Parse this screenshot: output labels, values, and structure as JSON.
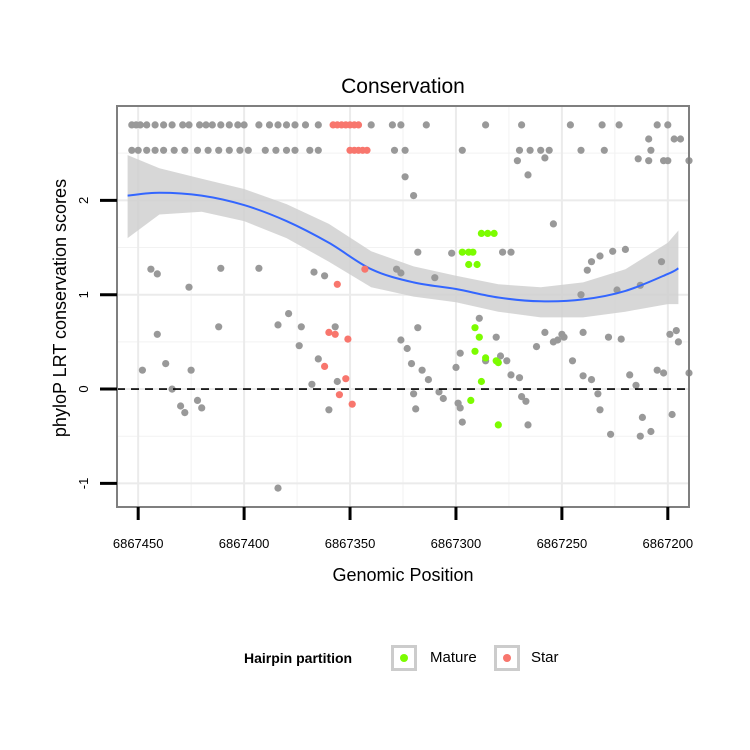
{
  "chart_data": {
    "type": "scatter",
    "title": "Conservation",
    "xlabel": "Genomic Position",
    "ylabel": "phyloP LRT conservation scores",
    "x_reversed": true,
    "xlim": [
      6867460,
      6867190
    ],
    "ylim": [
      -1.25,
      3.0
    ],
    "x_ticks": [
      6867450,
      6867400,
      6867350,
      6867300,
      6867250,
      6867200
    ],
    "x_tick_labels": [
      "6867450",
      "6867400",
      "6867350",
      "6867300",
      "6867250",
      "6867200"
    ],
    "y_ticks": [
      -1,
      0,
      1,
      2
    ],
    "y_tick_labels": [
      "-1",
      "0",
      "1",
      "2"
    ],
    "reference_line": {
      "y": 0,
      "style": "dashed",
      "color": "#000000"
    },
    "grid": true,
    "legend_title": "Hairpin partition",
    "legend_position": "bottom",
    "colors": {
      "Other": "#999999",
      "Mature": "#7cfc00",
      "Star": "#f8766d",
      "smooth": "#3366ff",
      "band": "#d0d0d0"
    },
    "series": [
      {
        "name": "Mature",
        "color": "#7cfc00",
        "points": [
          [
            6867288,
            1.65
          ],
          [
            6867285,
            1.65
          ],
          [
            6867282,
            1.65
          ],
          [
            6867297,
            1.45
          ],
          [
            6867294,
            1.45
          ],
          [
            6867292,
            1.45
          ],
          [
            6867294,
            1.32
          ],
          [
            6867290,
            1.32
          ],
          [
            6867291,
            0.65
          ],
          [
            6867289,
            0.55
          ],
          [
            6867291,
            0.4
          ],
          [
            6867286,
            0.33
          ],
          [
            6867281,
            0.3
          ],
          [
            6867280,
            0.28
          ],
          [
            6867288,
            0.08
          ],
          [
            6867293,
            -0.12
          ],
          [
            6867280,
            -0.38
          ]
        ]
      },
      {
        "name": "Star",
        "color": "#f8766d",
        "points": [
          [
            6867358,
            2.8
          ],
          [
            6867356,
            2.8
          ],
          [
            6867354,
            2.8
          ],
          [
            6867352,
            2.8
          ],
          [
            6867350,
            2.8
          ],
          [
            6867348,
            2.8
          ],
          [
            6867346,
            2.8
          ],
          [
            6867350,
            2.53
          ],
          [
            6867348,
            2.53
          ],
          [
            6867346,
            2.53
          ],
          [
            6867344,
            2.53
          ],
          [
            6867342,
            2.53
          ],
          [
            6867343,
            1.27
          ],
          [
            6867356,
            1.11
          ],
          [
            6867360,
            0.6
          ],
          [
            6867357,
            0.58
          ],
          [
            6867351,
            0.53
          ],
          [
            6867362,
            0.24
          ],
          [
            6867352,
            0.11
          ],
          [
            6867355,
            -0.06
          ],
          [
            6867349,
            -0.16
          ]
        ]
      }
    ],
    "other_points": [
      [
        6867453,
        2.8
      ],
      [
        6867451,
        2.8
      ],
      [
        6867449,
        2.8
      ],
      [
        6867446,
        2.8
      ],
      [
        6867442,
        2.8
      ],
      [
        6867438,
        2.8
      ],
      [
        6867434,
        2.8
      ],
      [
        6867429,
        2.8
      ],
      [
        6867426,
        2.8
      ],
      [
        6867421,
        2.8
      ],
      [
        6867418,
        2.8
      ],
      [
        6867415,
        2.8
      ],
      [
        6867411,
        2.8
      ],
      [
        6867407,
        2.8
      ],
      [
        6867403,
        2.8
      ],
      [
        6867400,
        2.8
      ],
      [
        6867393,
        2.8
      ],
      [
        6867388,
        2.8
      ],
      [
        6867384,
        2.8
      ],
      [
        6867380,
        2.8
      ],
      [
        6867376,
        2.8
      ],
      [
        6867371,
        2.8
      ],
      [
        6867365,
        2.8
      ],
      [
        6867340,
        2.8
      ],
      [
        6867330,
        2.8
      ],
      [
        6867326,
        2.8
      ],
      [
        6867314,
        2.8
      ],
      [
        6867286,
        2.8
      ],
      [
        6867269,
        2.8
      ],
      [
        6867246,
        2.8
      ],
      [
        6867231,
        2.8
      ],
      [
        6867223,
        2.8
      ],
      [
        6867205,
        2.8
      ],
      [
        6867200,
        2.8
      ],
      [
        6867453,
        2.53
      ],
      [
        6867450,
        2.53
      ],
      [
        6867446,
        2.53
      ],
      [
        6867442,
        2.53
      ],
      [
        6867438,
        2.53
      ],
      [
        6867433,
        2.53
      ],
      [
        6867428,
        2.53
      ],
      [
        6867422,
        2.53
      ],
      [
        6867417,
        2.53
      ],
      [
        6867412,
        2.53
      ],
      [
        6867407,
        2.53
      ],
      [
        6867402,
        2.53
      ],
      [
        6867398,
        2.53
      ],
      [
        6867390,
        2.53
      ],
      [
        6867385,
        2.53
      ],
      [
        6867380,
        2.53
      ],
      [
        6867376,
        2.53
      ],
      [
        6867369,
        2.53
      ],
      [
        6867365,
        2.53
      ],
      [
        6867329,
        2.53
      ],
      [
        6867324,
        2.53
      ],
      [
        6867297,
        2.53
      ],
      [
        6867270,
        2.53
      ],
      [
        6867265,
        2.53
      ],
      [
        6867260,
        2.53
      ],
      [
        6867256,
        2.53
      ],
      [
        6867241,
        2.53
      ],
      [
        6867230,
        2.53
      ],
      [
        6867208,
        2.53
      ],
      [
        6867271,
        2.42
      ],
      [
        6867209,
        2.42
      ],
      [
        6867202,
        2.42
      ],
      [
        6867200,
        2.42
      ],
      [
        6867190,
        2.42
      ],
      [
        6867258,
        2.45
      ],
      [
        6867266,
        2.27
      ],
      [
        6867209,
        2.65
      ],
      [
        6867214,
        2.44
      ],
      [
        6867197,
        2.65
      ],
      [
        6867194,
        2.65
      ],
      [
        6867324,
        2.25
      ],
      [
        6867320,
        2.05
      ],
      [
        6867444,
        1.27
      ],
      [
        6867441,
        1.22
      ],
      [
        6867426,
        1.08
      ],
      [
        6867411,
        1.28
      ],
      [
        6867393,
        1.28
      ],
      [
        6867367,
        1.24
      ],
      [
        6867362,
        1.2
      ],
      [
        6867328,
        1.27
      ],
      [
        6867326,
        1.23
      ],
      [
        6867310,
        1.18
      ],
      [
        6867318,
        1.45
      ],
      [
        6867302,
        1.44
      ],
      [
        6867278,
        1.45
      ],
      [
        6867274,
        1.45
      ],
      [
        6867232,
        1.41
      ],
      [
        6867236,
        1.35
      ],
      [
        6867238,
        1.26
      ],
      [
        6867226,
        1.46
      ],
      [
        6867220,
        1.48
      ],
      [
        6867254,
        1.75
      ],
      [
        6867241,
        1.0
      ],
      [
        6867448,
        0.2
      ],
      [
        6867441,
        0.58
      ],
      [
        6867437,
        0.27
      ],
      [
        6867434,
        0.0
      ],
      [
        6867430,
        -0.18
      ],
      [
        6867428,
        -0.25
      ],
      [
        6867425,
        0.2
      ],
      [
        6867422,
        -0.12
      ],
      [
        6867420,
        -0.2
      ],
      [
        6867412,
        0.66
      ],
      [
        6867384,
        0.68
      ],
      [
        6867379,
        0.8
      ],
      [
        6867373,
        0.66
      ],
      [
        6867374,
        0.46
      ],
      [
        6867365,
        0.32
      ],
      [
        6867368,
        0.05
      ],
      [
        6867357,
        0.66
      ],
      [
        6867356,
        0.08
      ],
      [
        6867360,
        -0.22
      ],
      [
        6867384,
        -1.05
      ],
      [
        6867326,
        0.52
      ],
      [
        6867323,
        0.43
      ],
      [
        6867321,
        0.27
      ],
      [
        6867320,
        -0.05
      ],
      [
        6867319,
        -0.21
      ],
      [
        6867318,
        0.65
      ],
      [
        6867316,
        0.2
      ],
      [
        6867313,
        0.1
      ],
      [
        6867308,
        -0.03
      ],
      [
        6867306,
        -0.1
      ],
      [
        6867300,
        0.23
      ],
      [
        6867298,
        0.38
      ],
      [
        6867297,
        -0.35
      ],
      [
        6867299,
        -0.15
      ],
      [
        6867298,
        -0.2
      ],
      [
        6867289,
        0.75
      ],
      [
        6867286,
        0.3
      ],
      [
        6867281,
        0.55
      ],
      [
        6867279,
        0.35
      ],
      [
        6867276,
        0.3
      ],
      [
        6867274,
        0.15
      ],
      [
        6867270,
        0.12
      ],
      [
        6867269,
        -0.08
      ],
      [
        6867267,
        -0.13
      ],
      [
        6867266,
        -0.38
      ],
      [
        6867262,
        0.45
      ],
      [
        6867258,
        0.6
      ],
      [
        6867254,
        0.5
      ],
      [
        6867252,
        0.52
      ],
      [
        6867250,
        0.58
      ],
      [
        6867249,
        0.55
      ],
      [
        6867240,
        0.14
      ],
      [
        6867236,
        0.1
      ],
      [
        6867233,
        -0.05
      ],
      [
        6867232,
        -0.22
      ],
      [
        6867227,
        -0.48
      ],
      [
        6867245,
        0.3
      ],
      [
        6867240,
        0.6
      ],
      [
        6867228,
        0.55
      ],
      [
        6867222,
        0.53
      ],
      [
        6867218,
        0.15
      ],
      [
        6867215,
        0.04
      ],
      [
        6867213,
        -0.5
      ],
      [
        6867212,
        -0.3
      ],
      [
        6867208,
        -0.45
      ],
      [
        6867205,
        0.2
      ],
      [
        6867202,
        0.17
      ],
      [
        6867196,
        0.62
      ],
      [
        6867199,
        0.58
      ],
      [
        6867195,
        0.5
      ],
      [
        6867190,
        0.17
      ],
      [
        6867198,
        -0.27
      ],
      [
        6867224,
        1.05
      ],
      [
        6867213,
        1.1
      ],
      [
        6867203,
        1.35
      ]
    ],
    "smooth": {
      "x": [
        6867455,
        6867440,
        6867420,
        6867400,
        6867380,
        6867360,
        6867340,
        6867320,
        6867300,
        6867280,
        6867260,
        6867240,
        6867220,
        6867200,
        6867195
      ],
      "y": [
        2.05,
        2.08,
        2.05,
        1.95,
        1.78,
        1.55,
        1.27,
        1.13,
        1.06,
        0.97,
        0.93,
        0.95,
        1.04,
        1.22,
        1.28
      ],
      "lower": [
        1.6,
        1.85,
        1.88,
        1.78,
        1.6,
        1.35,
        1.08,
        0.98,
        0.92,
        0.82,
        0.76,
        0.76,
        0.82,
        0.9,
        0.9
      ],
      "upper": [
        2.48,
        2.34,
        2.23,
        2.12,
        1.96,
        1.75,
        1.46,
        1.3,
        1.2,
        1.11,
        1.08,
        1.13,
        1.27,
        1.55,
        1.68
      ]
    },
    "legend": [
      {
        "label": "Mature",
        "color": "#7cfc00"
      },
      {
        "label": "Star",
        "color": "#f8766d"
      }
    ]
  }
}
